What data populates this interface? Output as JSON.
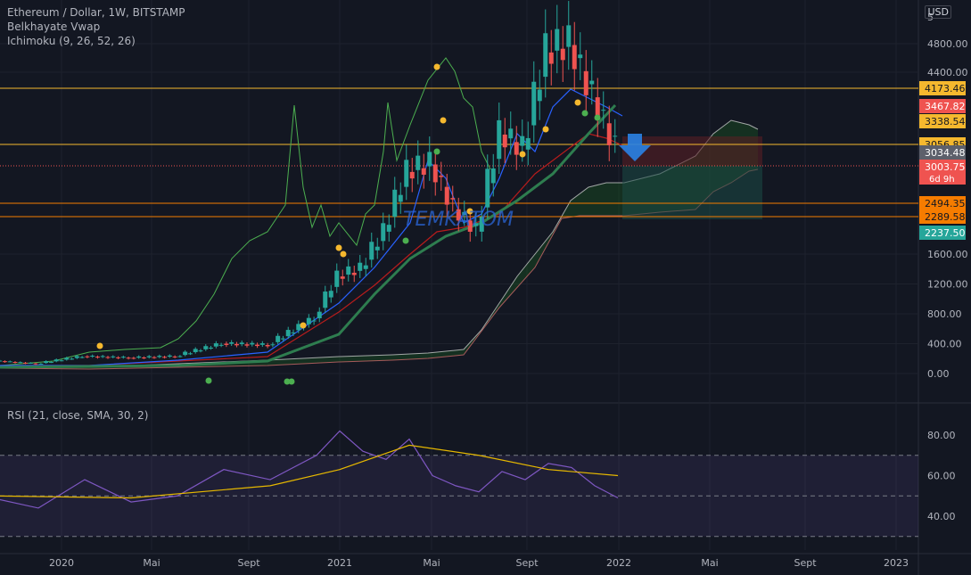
{
  "header": {
    "symbol_title": "Ethereum / Dollar, 1W, BITSTAMP",
    "indicator_1": "Belkhayate Vwap",
    "indicator_2": "Ichimoku (9, 26, 52, 26)",
    "rsi_title": "RSI (21, close, SMA, 30, 2)",
    "currency": "USD",
    "watermark": "TEMKATOM"
  },
  "colors": {
    "background": "#131722",
    "grid": "#1e222d",
    "candle_up": "#26a69a",
    "candle_down": "#ef5350",
    "level_line": "#f5b82e",
    "level_line_orange": "#f57c00",
    "rsi_line": "#7e57c2",
    "rsi_ma": "#e6b800",
    "tenkan": "#2962ff",
    "kijun": "#b71c1c",
    "chikou": "#4caf50",
    "cloud_green": "#1b5e20",
    "cloud_red": "#5d1f24",
    "arrow": "#2a83e6",
    "dot_yellow": "#f5b82e",
    "dot_green": "#4caf50"
  },
  "chart_data": [
    {
      "type": "line",
      "title": "Ethereum / Dollar, 1W, BITSTAMP",
      "y_scale": "linear",
      "yticks": [
        0,
        400,
        800,
        1200,
        1600,
        4400,
        4800
      ],
      "ytick_labels": [
        "0.00",
        "400.00",
        "800.00",
        "1200.00",
        "1600.00",
        "4400.00",
        "4800.00"
      ],
      "ylim": [
        -100,
        5000
      ],
      "xticks": [
        "2020",
        "Mai",
        "Sept",
        "2021",
        "Mai",
        "Sept",
        "2022",
        "Mai",
        "Sept",
        "2023"
      ],
      "horizontal_levels": [
        {
          "label": "4173.46",
          "value": 4173.46,
          "style": "yellow"
        },
        {
          "label": "3056.85",
          "value": 3056.85,
          "style": "yellow"
        },
        {
          "label": "2494.35",
          "value": 2494.35,
          "style": "orange"
        },
        {
          "label": "2289.58",
          "value": 2289.58,
          "style": "orange"
        }
      ],
      "price_labels": [
        {
          "label": "3467.82",
          "color": "#ef5350"
        },
        {
          "label": "3338.54",
          "color": "#f5b82e"
        },
        {
          "label": "3034.48",
          "color": "#5d606b"
        },
        {
          "label": "3003.75",
          "sub": "6d 9h",
          "color": "#ef5350"
        },
        {
          "label": "2237.50",
          "color": "#26a69a"
        }
      ],
      "last_price": 3003.75,
      "countdown": "6d 9h",
      "series": [
        {
          "name": "Close",
          "x": [
            "2019-10",
            "2019-12",
            "2020-02",
            "2020-04",
            "2020-06",
            "2020-08",
            "2020-10",
            "2020-12",
            "2021-01",
            "2021-02",
            "2021-03",
            "2021-04",
            "2021-05",
            "2021-06",
            "2021-07",
            "2021-08",
            "2021-09",
            "2021-10",
            "2021-11",
            "2021-12",
            "2022-01"
          ],
          "values": [
            175,
            130,
            230,
            210,
            230,
            400,
            380,
            740,
            1300,
            1400,
            1900,
            2700,
            2800,
            2200,
            1900,
            3200,
            3000,
            4300,
            4400,
            3700,
            3003.75
          ]
        }
      ]
    },
    {
      "type": "line",
      "title": "RSI (21, close, SMA, 30, 2)",
      "yticks": [
        40,
        60,
        80
      ],
      "ytick_labels": [
        "40.00",
        "60.00",
        "80.00"
      ],
      "ylim": [
        28,
        74
      ],
      "bands": [
        70,
        50,
        30
      ],
      "series": [
        {
          "name": "RSI",
          "x": [
            "2019-10",
            "2019-12",
            "2020-02",
            "2020-04",
            "2020-06",
            "2020-08",
            "2020-10",
            "2020-12",
            "2021-01",
            "2021-02",
            "2021-03",
            "2021-04",
            "2021-05",
            "2021-06",
            "2021-07",
            "2021-08",
            "2021-09",
            "2021-10",
            "2021-11",
            "2021-12",
            "2022-01"
          ],
          "values": [
            49,
            44,
            58,
            47,
            50,
            63,
            58,
            70,
            82,
            72,
            68,
            78,
            60,
            55,
            52,
            62,
            58,
            66,
            64,
            55,
            49
          ]
        },
        {
          "name": "MA",
          "x": [
            "2019-10",
            "2020-04",
            "2020-10",
            "2021-01",
            "2021-04",
            "2021-07",
            "2021-10",
            "2022-01"
          ],
          "values": [
            50,
            49,
            55,
            63,
            75,
            70,
            63,
            60
          ]
        }
      ]
    }
  ]
}
